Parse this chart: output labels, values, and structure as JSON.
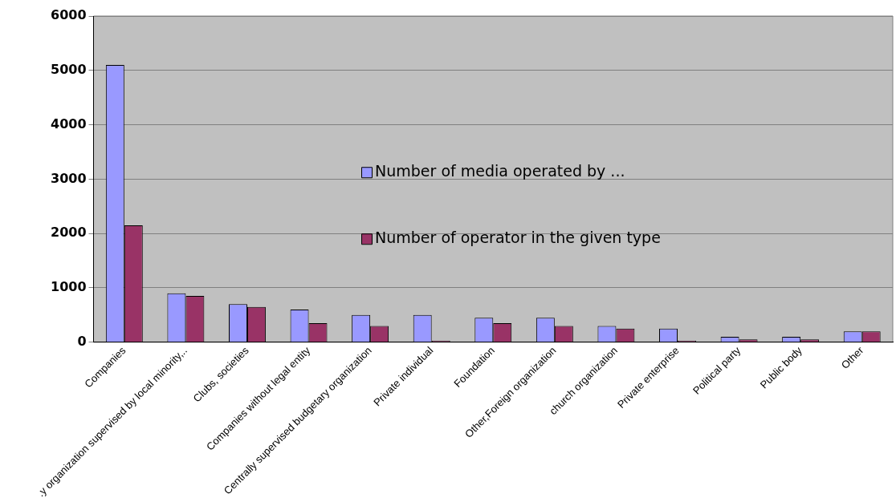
{
  "chart_data": {
    "type": "bar",
    "categories": [
      "Companies",
      ".y organization supervised by local minority,..",
      "Clubs, societies",
      "Companies without legal entity",
      "Centrally supervised budgetary organization",
      "Private individual",
      "Foundation",
      "Other,Foreign organization",
      "church organization",
      "Private enterprise",
      "Political party",
      "Public body",
      "Other"
    ],
    "series": [
      {
        "name": "Number of media operated by ...",
        "color": "#9999ff",
        "values": [
          5100,
          900,
          700,
          600,
          500,
          500,
          450,
          450,
          300,
          250,
          100,
          100,
          200
        ]
      },
      {
        "name": "Number of operator in the given type",
        "color": "#993366",
        "values": [
          2150,
          850,
          650,
          350,
          300,
          30,
          350,
          300,
          250,
          30,
          50,
          50,
          200
        ]
      }
    ],
    "ylim": [
      0,
      6000
    ],
    "yticks": [
      0,
      1000,
      2000,
      3000,
      4000,
      5000,
      6000
    ],
    "grid": "y",
    "legend": "center"
  }
}
